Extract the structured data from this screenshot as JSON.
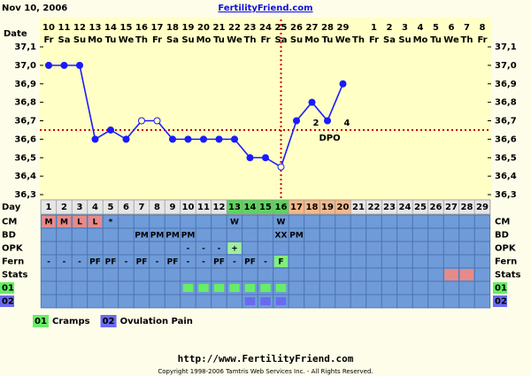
{
  "header": {
    "date": "Nov 10, 2006",
    "site": "FertilityFriend.com"
  },
  "chart_data": {
    "type": "line",
    "date_label": "Date",
    "dates": [
      10,
      11,
      12,
      13,
      14,
      15,
      16,
      17,
      18,
      19,
      20,
      21,
      22,
      23,
      24,
      25,
      26,
      27,
      28,
      29,
      null,
      1,
      2,
      3,
      4,
      5,
      6,
      7,
      8
    ],
    "weekdays": [
      "Fr",
      "Sa",
      "Su",
      "Mo",
      "Tu",
      "We",
      "Th",
      "Fr",
      "Sa",
      "Su",
      "Mo",
      "Tu",
      "We",
      "Th",
      "Fr",
      "Sa",
      "Su",
      "Mo",
      "Tu",
      "We",
      "Th",
      "Fr",
      "Sa",
      "Su",
      "Mo",
      "Tu",
      "We",
      "Th",
      "Fr"
    ],
    "day_label": "Day",
    "days": [
      1,
      2,
      3,
      4,
      5,
      6,
      7,
      8,
      9,
      10,
      11,
      12,
      13,
      14,
      15,
      16,
      17,
      18,
      19,
      20,
      21,
      22,
      23,
      24,
      25,
      26,
      27,
      28,
      29
    ],
    "day_colors": [
      null,
      null,
      null,
      null,
      null,
      null,
      null,
      null,
      null,
      null,
      null,
      null,
      "#5fd35f",
      "#5fd35f",
      "#5fd35f",
      "#5fd35f",
      "#f5b88a",
      "#f5b88a",
      "#f5b88a",
      "#f5b88a",
      null,
      null,
      null,
      null,
      null,
      null,
      null,
      null,
      null
    ],
    "ylim": [
      36.3,
      37.1
    ],
    "yticks": [
      {
        "value": 37.1,
        "label": "37,1"
      },
      {
        "value": 37.0,
        "label": "37,0"
      },
      {
        "value": 36.9,
        "label": "36,9"
      },
      {
        "value": 36.8,
        "label": "36,8"
      },
      {
        "value": 36.7,
        "label": "36,7"
      },
      {
        "value": 36.6,
        "label": "36,6"
      },
      {
        "value": 36.5,
        "label": "36,5"
      },
      {
        "value": 36.4,
        "label": "36,4"
      },
      {
        "value": 36.3,
        "label": "36,3"
      }
    ],
    "series": [
      {
        "color": "#1a1aff",
        "values": [
          37.0,
          37.0,
          37.0,
          36.6,
          36.65,
          36.6,
          36.7,
          36.7,
          36.6,
          36.6,
          36.6,
          36.6,
          36.6,
          36.5,
          36.5,
          36.45,
          36.7,
          36.8,
          36.7,
          36.9,
          null,
          null,
          null,
          null,
          null,
          null,
          null,
          null,
          null
        ]
      }
    ],
    "hollow_days": [
      7,
      8,
      16
    ],
    "coverline": 36.65,
    "ovulation_day": 16,
    "line_color": "#cc0000",
    "dpo_labels": [
      {
        "day": 18,
        "label": "2"
      },
      {
        "day": 20,
        "label": "4"
      }
    ],
    "dpo_text": "DPO",
    "rows": [
      {
        "label": "CM",
        "texts": [
          "M",
          "M",
          "L",
          "L",
          "*",
          null,
          null,
          null,
          null,
          null,
          null,
          null,
          "W",
          null,
          null,
          "W",
          null,
          null,
          null,
          null,
          null,
          null,
          null,
          null,
          null,
          null,
          null,
          null,
          null
        ],
        "colors": [
          "#e68a8a",
          "#e68a8a",
          "#e68a8a",
          "#e68a8a",
          null,
          null,
          null,
          null,
          null,
          null,
          null,
          null,
          null,
          null,
          null,
          null,
          null,
          null,
          null,
          null,
          null,
          null,
          null,
          null,
          null,
          null,
          null,
          null,
          null
        ]
      },
      {
        "label": "BD",
        "texts": [
          null,
          null,
          null,
          null,
          null,
          null,
          "PM",
          "PM",
          "PM",
          "PM",
          null,
          null,
          null,
          null,
          null,
          "XX",
          "PM",
          null,
          null,
          null,
          null,
          null,
          null,
          null,
          null,
          null,
          null,
          null,
          null
        ]
      },
      {
        "label": "OPK",
        "texts": [
          null,
          null,
          null,
          null,
          null,
          null,
          null,
          null,
          null,
          "-",
          "-",
          "-",
          "+",
          null,
          null,
          null,
          null,
          null,
          null,
          null,
          null,
          null,
          null,
          null,
          null,
          null,
          null,
          null,
          null
        ],
        "colors": [
          null,
          null,
          null,
          null,
          null,
          null,
          null,
          null,
          null,
          null,
          null,
          null,
          "#9fef9f",
          null,
          null,
          null,
          null,
          null,
          null,
          null,
          null,
          null,
          null,
          null,
          null,
          null,
          null,
          null,
          null
        ]
      },
      {
        "label": "Fern",
        "texts": [
          "-",
          "-",
          "-",
          "PF",
          "PF",
          "-",
          "PF",
          "-",
          "PF",
          "-",
          "-",
          "PF",
          "-",
          "PF",
          "-",
          "F",
          null,
          null,
          null,
          null,
          null,
          null,
          null,
          null,
          null,
          null,
          null,
          null,
          null
        ],
        "colors": [
          null,
          null,
          null,
          null,
          null,
          null,
          null,
          null,
          null,
          null,
          null,
          null,
          null,
          null,
          null,
          "#7fef7f",
          null,
          null,
          null,
          null,
          null,
          null,
          null,
          null,
          null,
          null,
          null,
          null,
          null
        ]
      },
      {
        "label": "Stats",
        "colors": [
          null,
          null,
          null,
          null,
          null,
          null,
          null,
          null,
          null,
          null,
          null,
          null,
          null,
          null,
          null,
          null,
          null,
          null,
          null,
          null,
          null,
          null,
          null,
          null,
          null,
          null,
          "#e68a8a",
          "#e68a8a",
          null
        ]
      },
      {
        "label": "01",
        "label_color": "#66ee66",
        "colors": [
          null,
          null,
          null,
          null,
          null,
          null,
          null,
          null,
          null,
          "#66ee66",
          "#66ee66",
          "#66ee66",
          "#66ee66",
          "#66ee66",
          "#66ee66",
          "#66ee66",
          null,
          null,
          null,
          null,
          null,
          null,
          null,
          null,
          null,
          null,
          null,
          null,
          null
        ]
      },
      {
        "label": "02",
        "label_color": "#6a6af0",
        "colors": [
          null,
          null,
          null,
          null,
          null,
          null,
          null,
          null,
          null,
          null,
          null,
          null,
          null,
          "#6a6af0",
          "#6a6af0",
          "#6a6af0",
          null,
          null,
          null,
          null,
          null,
          null,
          null,
          null,
          null,
          null,
          null,
          null,
          null
        ]
      }
    ],
    "legend": [
      {
        "code": "01",
        "label": "Cramps",
        "color": "#66ee66"
      },
      {
        "code": "02",
        "label": "Ovulation Pain",
        "color": "#6a6af0"
      }
    ]
  },
  "footer": {
    "url": "http://www.FertilityFriend.com",
    "copyright": "Copyright 1998-2006 Tamtris Web Services Inc. - All Rights Reserved."
  }
}
